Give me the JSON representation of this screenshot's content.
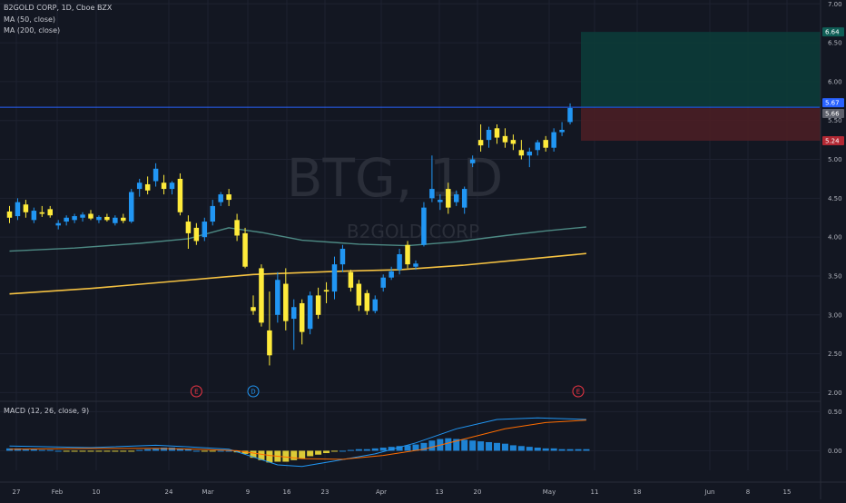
{
  "header": {
    "title": "B2GOLD CORP, 1D, Cboe BZX",
    "ma50_label": "MA (50, close)",
    "ma200_label": "MA (200, close)",
    "macd_label": "MACD (12, 26, close, 9)"
  },
  "watermark": {
    "symbol": "BTG, 1D",
    "name": "B2GOLD CORP"
  },
  "colors": {
    "background": "#131722",
    "grid": "#1e2230",
    "up": "#2196f3",
    "down": "#ffeb3b",
    "ma50": "#4d8a84",
    "ma200": "#f5c242",
    "price_line": "#2962ff",
    "target_zone": "#0c3b38",
    "stop_zone": "#4a1e25",
    "macd_line": "#2196f3",
    "signal_line": "#ff6d00"
  },
  "chart_data": [
    {
      "type": "candlestick",
      "price_axis": {
        "ticks": [
          2.0,
          2.5,
          3.0,
          3.5,
          4.0,
          4.5,
          5.0,
          5.5,
          6.0,
          6.5,
          7.0
        ],
        "range": [
          1.9,
          7.05
        ]
      },
      "time_axis": {
        "ticks": [
          "27",
          "Feb",
          "10",
          "24",
          "Mar",
          "9",
          "16",
          "23",
          "Apr",
          "13",
          "20",
          "May",
          "11",
          "18",
          "Jun",
          "8",
          "15"
        ]
      },
      "candles": [
        {
          "o": 4.33,
          "h": 4.4,
          "l": 4.18,
          "c": 4.25
        },
        {
          "o": 4.27,
          "h": 4.5,
          "l": 4.22,
          "c": 4.45
        },
        {
          "o": 4.42,
          "h": 4.48,
          "l": 4.25,
          "c": 4.32
        },
        {
          "o": 4.22,
          "h": 4.38,
          "l": 4.18,
          "c": 4.34
        },
        {
          "o": 4.32,
          "h": 4.4,
          "l": 4.26,
          "c": 4.3
        },
        {
          "o": 4.36,
          "h": 4.4,
          "l": 4.25,
          "c": 4.28
        },
        {
          "o": 4.15,
          "h": 4.22,
          "l": 4.1,
          "c": 4.18
        },
        {
          "o": 4.2,
          "h": 4.28,
          "l": 4.15,
          "c": 4.25
        },
        {
          "o": 4.22,
          "h": 4.3,
          "l": 4.18,
          "c": 4.27
        },
        {
          "o": 4.25,
          "h": 4.32,
          "l": 4.2,
          "c": 4.29
        },
        {
          "o": 4.3,
          "h": 4.35,
          "l": 4.22,
          "c": 4.24
        },
        {
          "o": 4.22,
          "h": 4.28,
          "l": 4.18,
          "c": 4.26
        },
        {
          "o": 4.26,
          "h": 4.3,
          "l": 4.2,
          "c": 4.22
        },
        {
          "o": 4.18,
          "h": 4.28,
          "l": 4.15,
          "c": 4.25
        },
        {
          "o": 4.25,
          "h": 4.3,
          "l": 4.18,
          "c": 4.21
        },
        {
          "o": 4.2,
          "h": 4.62,
          "l": 4.18,
          "c": 4.58
        },
        {
          "o": 4.62,
          "h": 4.75,
          "l": 4.52,
          "c": 4.7
        },
        {
          "o": 4.68,
          "h": 4.78,
          "l": 4.55,
          "c": 4.6
        },
        {
          "o": 4.72,
          "h": 4.95,
          "l": 4.65,
          "c": 4.88
        },
        {
          "o": 4.7,
          "h": 4.8,
          "l": 4.55,
          "c": 4.62
        },
        {
          "o": 4.62,
          "h": 4.72,
          "l": 4.55,
          "c": 4.7
        },
        {
          "o": 4.75,
          "h": 4.82,
          "l": 4.28,
          "c": 4.32
        },
        {
          "o": 4.2,
          "h": 4.28,
          "l": 3.85,
          "c": 4.05
        },
        {
          "o": 4.12,
          "h": 4.18,
          "l": 3.9,
          "c": 3.95
        },
        {
          "o": 4.0,
          "h": 4.25,
          "l": 3.95,
          "c": 4.2
        },
        {
          "o": 4.2,
          "h": 4.48,
          "l": 4.15,
          "c": 4.4
        },
        {
          "o": 4.45,
          "h": 4.58,
          "l": 4.4,
          "c": 4.55
        },
        {
          "o": 4.55,
          "h": 4.62,
          "l": 4.4,
          "c": 4.48
        },
        {
          "o": 4.22,
          "h": 4.3,
          "l": 3.95,
          "c": 4.02
        },
        {
          "o": 4.05,
          "h": 4.12,
          "l": 3.6,
          "c": 3.62
        },
        {
          "o": 3.1,
          "h": 3.25,
          "l": 3.0,
          "c": 3.05
        },
        {
          "o": 3.6,
          "h": 3.65,
          "l": 2.85,
          "c": 2.9
        },
        {
          "o": 2.8,
          "h": 3.3,
          "l": 2.35,
          "c": 2.48
        },
        {
          "o": 3.0,
          "h": 3.55,
          "l": 2.9,
          "c": 3.45
        },
        {
          "o": 3.4,
          "h": 3.6,
          "l": 2.8,
          "c": 2.92
        },
        {
          "o": 2.95,
          "h": 3.2,
          "l": 2.55,
          "c": 3.1
        },
        {
          "o": 3.15,
          "h": 3.2,
          "l": 2.62,
          "c": 2.78
        },
        {
          "o": 2.82,
          "h": 3.3,
          "l": 2.75,
          "c": 3.25
        },
        {
          "o": 3.25,
          "h": 3.35,
          "l": 2.95,
          "c": 3.0
        },
        {
          "o": 3.32,
          "h": 3.42,
          "l": 3.15,
          "c": 3.3
        },
        {
          "o": 3.3,
          "h": 3.75,
          "l": 3.2,
          "c": 3.65
        },
        {
          "o": 3.65,
          "h": 3.9,
          "l": 3.55,
          "c": 3.85
        },
        {
          "o": 3.55,
          "h": 3.58,
          "l": 3.3,
          "c": 3.35
        },
        {
          "o": 3.4,
          "h": 3.45,
          "l": 3.05,
          "c": 3.12
        },
        {
          "o": 3.28,
          "h": 3.32,
          "l": 3.0,
          "c": 3.05
        },
        {
          "o": 3.05,
          "h": 3.25,
          "l": 3.02,
          "c": 3.2
        },
        {
          "o": 3.35,
          "h": 3.52,
          "l": 3.3,
          "c": 3.48
        },
        {
          "o": 3.48,
          "h": 3.62,
          "l": 3.45,
          "c": 3.56
        },
        {
          "o": 3.58,
          "h": 3.85,
          "l": 3.52,
          "c": 3.78
        },
        {
          "o": 3.9,
          "h": 3.95,
          "l": 3.6,
          "c": 3.65
        },
        {
          "o": 3.62,
          "h": 3.7,
          "l": 3.58,
          "c": 3.66
        },
        {
          "o": 3.9,
          "h": 4.45,
          "l": 3.88,
          "c": 4.38
        },
        {
          "o": 4.5,
          "h": 5.05,
          "l": 4.45,
          "c": 4.62
        },
        {
          "o": 4.45,
          "h": 4.55,
          "l": 4.35,
          "c": 4.48
        },
        {
          "o": 4.62,
          "h": 4.7,
          "l": 4.3,
          "c": 4.38
        },
        {
          "o": 4.45,
          "h": 4.6,
          "l": 4.4,
          "c": 4.55
        },
        {
          "o": 4.38,
          "h": 4.65,
          "l": 4.3,
          "c": 4.62
        },
        {
          "o": 4.95,
          "h": 5.05,
          "l": 4.9,
          "c": 5.0
        },
        {
          "o": 5.25,
          "h": 5.45,
          "l": 5.1,
          "c": 5.18
        },
        {
          "o": 5.25,
          "h": 5.42,
          "l": 5.15,
          "c": 5.38
        },
        {
          "o": 5.4,
          "h": 5.45,
          "l": 5.2,
          "c": 5.28
        },
        {
          "o": 5.3,
          "h": 5.4,
          "l": 5.15,
          "c": 5.22
        },
        {
          "o": 5.25,
          "h": 5.32,
          "l": 5.12,
          "c": 5.2
        },
        {
          "o": 5.12,
          "h": 5.25,
          "l": 5.0,
          "c": 5.05
        },
        {
          "o": 5.05,
          "h": 5.15,
          "l": 4.9,
          "c": 5.1
        },
        {
          "o": 5.12,
          "h": 5.25,
          "l": 5.05,
          "c": 5.22
        },
        {
          "o": 5.25,
          "h": 5.3,
          "l": 5.1,
          "c": 5.15
        },
        {
          "o": 5.15,
          "h": 5.4,
          "l": 5.1,
          "c": 5.35
        },
        {
          "o": 5.35,
          "h": 5.48,
          "l": 5.3,
          "c": 5.38
        },
        {
          "o": 5.48,
          "h": 5.72,
          "l": 5.45,
          "c": 5.66
        }
      ],
      "ma50": [
        [
          0,
          3.82
        ],
        [
          8,
          3.86
        ],
        [
          16,
          3.92
        ],
        [
          22,
          3.98
        ],
        [
          27,
          4.12
        ],
        [
          31,
          4.06
        ],
        [
          36,
          3.96
        ],
        [
          43,
          3.91
        ],
        [
          49,
          3.89
        ],
        [
          55,
          3.94
        ],
        [
          61,
          4.02
        ],
        [
          66,
          4.08
        ],
        [
          71,
          4.13
        ]
      ],
      "ma200": [
        [
          0,
          3.27
        ],
        [
          10,
          3.34
        ],
        [
          20,
          3.43
        ],
        [
          30,
          3.52
        ],
        [
          40,
          3.56
        ],
        [
          48,
          3.58
        ],
        [
          56,
          3.64
        ],
        [
          64,
          3.72
        ],
        [
          71,
          3.79
        ]
      ],
      "price_line": 5.67,
      "target_zone": {
        "top": 6.64,
        "bottom": 5.67
      },
      "stop_zone": {
        "top": 5.66,
        "bottom": 5.24
      },
      "price_tags": [
        {
          "value": 6.64,
          "label": "6.64",
          "bg": "#0f5e56",
          "fg": "#ffffff"
        },
        {
          "value": 5.67,
          "label": "5.67",
          "bg": "#2962ff",
          "fg": "#ffffff"
        },
        {
          "value": 5.66,
          "label": "5.66",
          "bg": "#5d606b",
          "fg": "#ffffff"
        },
        {
          "value": 5.24,
          "label": "5.24",
          "bg": "#b22833",
          "fg": "#ffffff"
        }
      ],
      "events": [
        {
          "label": "E",
          "index": 23,
          "color": "#f23645"
        },
        {
          "label": "D",
          "index": 30,
          "color": "#2196f3"
        },
        {
          "label": "E",
          "index": 70,
          "color": "#f23645"
        }
      ]
    },
    {
      "type": "macd",
      "axis": {
        "ticks": [
          0.5,
          0.0
        ],
        "range": [
          -0.25,
          0.62
        ]
      },
      "histogram": [
        0.03,
        0.03,
        0.02,
        0.02,
        0.01,
        0.01,
        0.0,
        -0.01,
        -0.01,
        -0.01,
        -0.01,
        -0.01,
        -0.01,
        -0.01,
        -0.01,
        -0.01,
        0.01,
        0.02,
        0.03,
        0.04,
        0.04,
        0.03,
        0.02,
        0.0,
        -0.01,
        -0.01,
        0.0,
        0.0,
        -0.02,
        -0.04,
        -0.09,
        -0.12,
        -0.15,
        -0.14,
        -0.14,
        -0.12,
        -0.1,
        -0.07,
        -0.05,
        -0.03,
        -0.01,
        0.0,
        0.01,
        0.02,
        0.02,
        0.03,
        0.04,
        0.05,
        0.06,
        0.07,
        0.08,
        0.1,
        0.13,
        0.15,
        0.16,
        0.15,
        0.14,
        0.13,
        0.12,
        0.11,
        0.1,
        0.09,
        0.07,
        0.06,
        0.05,
        0.04,
        0.03,
        0.03,
        0.02,
        0.02,
        0.02,
        0.02
      ],
      "macd_line": [
        [
          0,
          0.06
        ],
        [
          10,
          0.04
        ],
        [
          18,
          0.07
        ],
        [
          22,
          0.05
        ],
        [
          27,
          0.02
        ],
        [
          30,
          -0.08
        ],
        [
          33,
          -0.18
        ],
        [
          36,
          -0.2
        ],
        [
          40,
          -0.13
        ],
        [
          45,
          -0.04
        ],
        [
          50,
          0.1
        ],
        [
          55,
          0.28
        ],
        [
          60,
          0.4
        ],
        [
          65,
          0.42
        ],
        [
          71,
          0.4
        ]
      ],
      "signal_line": [
        [
          0,
          0.02
        ],
        [
          10,
          0.03
        ],
        [
          18,
          0.03
        ],
        [
          23,
          0.02
        ],
        [
          28,
          0.0
        ],
        [
          32,
          -0.06
        ],
        [
          36,
          -0.1
        ],
        [
          41,
          -0.11
        ],
        [
          46,
          -0.06
        ],
        [
          51,
          0.02
        ],
        [
          56,
          0.15
        ],
        [
          61,
          0.28
        ],
        [
          66,
          0.36
        ],
        [
          71,
          0.39
        ]
      ]
    }
  ]
}
